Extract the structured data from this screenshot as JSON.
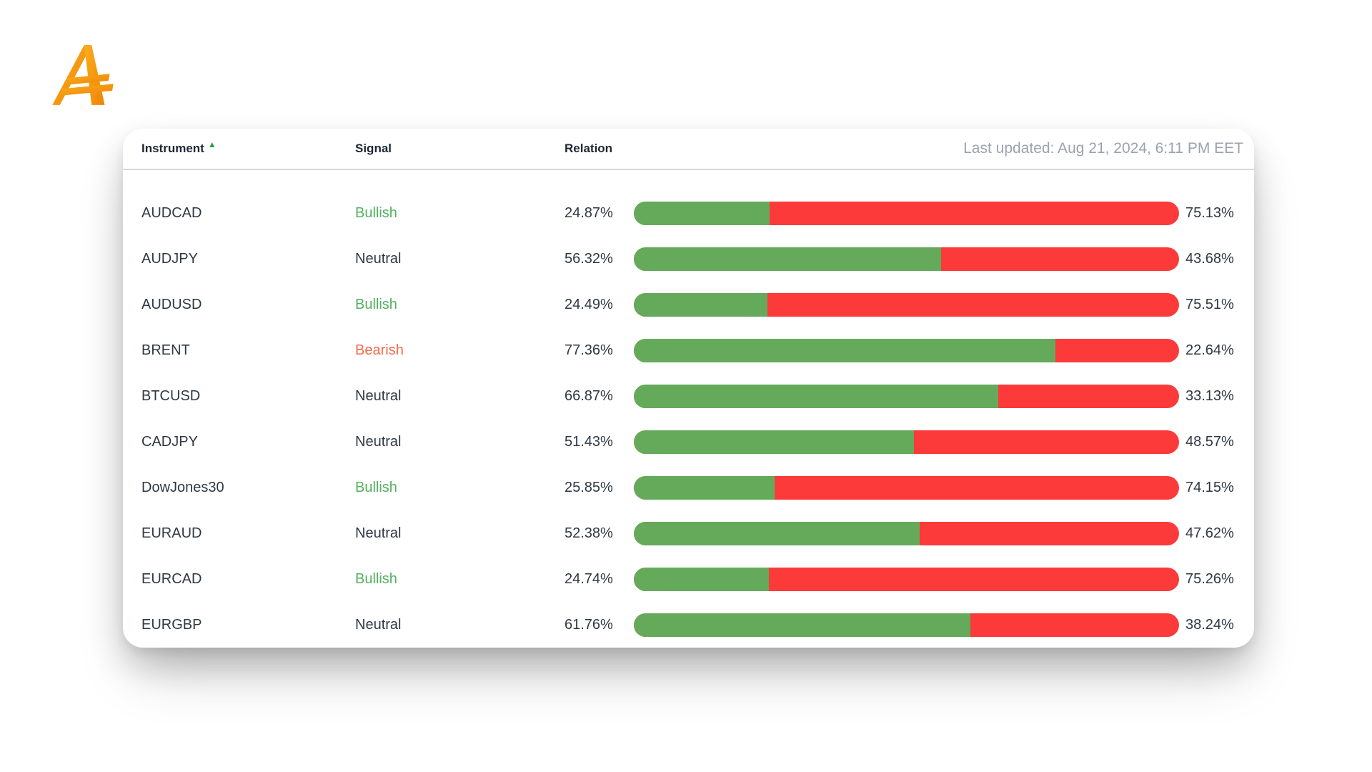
{
  "logo": {
    "name": "brand-a-logo",
    "gradient_start": "#FBAD1C",
    "gradient_end": "#EF8406"
  },
  "table": {
    "columns": {
      "instrument": "Instrument",
      "signal": "Signal",
      "relation": "Relation"
    },
    "sort": {
      "column": "Instrument",
      "direction": "ascending",
      "icon": "▲"
    },
    "last_updated": "Last updated: Aug 21, 2024, 6:11 PM EET",
    "rows": [
      {
        "instrument": "AUDCAD",
        "signal": "Bullish",
        "bullish_pct": "24.87%",
        "bearish_pct": "75.13%",
        "bullish_value": 24.87
      },
      {
        "instrument": "AUDJPY",
        "signal": "Neutral",
        "bullish_pct": "56.32%",
        "bearish_pct": "43.68%",
        "bullish_value": 56.32
      },
      {
        "instrument": "AUDUSD",
        "signal": "Bullish",
        "bullish_pct": "24.49%",
        "bearish_pct": "75.51%",
        "bullish_value": 24.49
      },
      {
        "instrument": "BRENT",
        "signal": "Bearish",
        "bullish_pct": "77.36%",
        "bearish_pct": "22.64%",
        "bullish_value": 77.36
      },
      {
        "instrument": "BTCUSD",
        "signal": "Neutral",
        "bullish_pct": "66.87%",
        "bearish_pct": "33.13%",
        "bullish_value": 66.87
      },
      {
        "instrument": "CADJPY",
        "signal": "Neutral",
        "bullish_pct": "51.43%",
        "bearish_pct": "48.57%",
        "bullish_value": 51.43
      },
      {
        "instrument": "DowJones30",
        "signal": "Bullish",
        "bullish_pct": "25.85%",
        "bearish_pct": "74.15%",
        "bullish_value": 25.85
      },
      {
        "instrument": "EURAUD",
        "signal": "Neutral",
        "bullish_pct": "52.38%",
        "bearish_pct": "47.62%",
        "bullish_value": 52.38
      },
      {
        "instrument": "EURCAD",
        "signal": "Bullish",
        "bullish_pct": "24.74%",
        "bearish_pct": "75.26%",
        "bullish_value": 24.74
      },
      {
        "instrument": "EURGBP",
        "signal": "Neutral",
        "bullish_pct": "61.76%",
        "bearish_pct": "38.24%",
        "bullish_value": 61.76
      }
    ]
  },
  "colors": {
    "bar_green": "#64aa5a",
    "bar_red": "#fc3a3a",
    "bullish_text": "#53b15f",
    "bearish_text": "#f4694c",
    "neutral_text": "#2f3944",
    "header_text": "#1c2733",
    "muted_text": "#9aa3ad",
    "divider": "#d9d9d9",
    "sort_arrow_green": "#2e9c41"
  }
}
